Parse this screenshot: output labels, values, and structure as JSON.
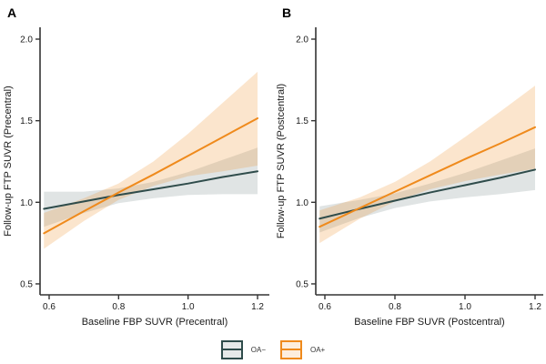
{
  "figure": {
    "panels": [
      {
        "tag": "A"
      },
      {
        "tag": "B"
      }
    ]
  },
  "colors": {
    "oa_neg_line": "#2F4C4B",
    "oa_pos_line": "#EF8A1C",
    "oa_neg_band": "rgba(47,76,75,0.15)",
    "oa_pos_band": "rgba(239,138,28,0.22)",
    "axis": "#333333",
    "text": "#1A1A1A"
  },
  "legend": {
    "items": [
      {
        "label": "OA−",
        "color": "#2F4C4B",
        "band": "rgba(47,76,75,0.12)"
      },
      {
        "label": "OA+",
        "color": "#EF8A1C",
        "band": "rgba(239,138,28,0.15)"
      }
    ]
  },
  "chart_data": [
    {
      "type": "line",
      "panel": "A",
      "xlabel": "Baseline FBP SUVR (Precentral)",
      "ylabel": "Follow-up FTP SUVR (Precentral)",
      "xlim": [
        0.55,
        1.22
      ],
      "ylim": [
        0.43,
        2.07
      ],
      "x_tick_values": [
        0.6,
        0.8,
        1.0,
        1.2
      ],
      "x_ticks": [
        "0.6",
        "0.8",
        "1.0",
        "1.2"
      ],
      "y_tick_values": [
        0.5,
        1.0,
        1.5,
        2.0
      ],
      "y_ticks": [
        "0.5",
        "1.0",
        "1.5",
        "2.0"
      ],
      "grid": false,
      "x": [
        0.585,
        0.7,
        0.8,
        0.9,
        1.0,
        1.1,
        1.2
      ],
      "series": [
        {
          "name": "OA−",
          "color": "#2F4C4B",
          "fill": "rgba(47,76,75,0.15)",
          "y": [
            0.96,
            1.005,
            1.045,
            1.08,
            1.115,
            1.155,
            1.19
          ],
          "ci_low": [
            0.85,
            0.935,
            0.995,
            1.025,
            1.045,
            1.05,
            1.05
          ],
          "ci_high": [
            1.065,
            1.065,
            1.085,
            1.125,
            1.185,
            1.26,
            1.335
          ]
        },
        {
          "name": "OA+",
          "color": "#EF8A1C",
          "fill": "rgba(239,138,28,0.22)",
          "y": [
            0.81,
            0.945,
            1.06,
            1.17,
            1.285,
            1.4,
            1.515
          ],
          "ci_low": [
            0.715,
            0.885,
            1.015,
            1.1,
            1.16,
            1.19,
            1.225
          ],
          "ci_high": [
            0.935,
            1.025,
            1.115,
            1.25,
            1.42,
            1.61,
            1.8
          ]
        }
      ]
    },
    {
      "type": "line",
      "panel": "B",
      "xlabel": "Baseline FBP SUVR (Postcentral)",
      "ylabel": "Follow-up FTP SUVR (Postcentral)",
      "xlim": [
        0.55,
        1.22
      ],
      "ylim": [
        0.43,
        2.07
      ],
      "x_tick_values": [
        0.6,
        0.8,
        1.0,
        1.2
      ],
      "x_ticks": [
        "0.6",
        "0.8",
        "1.0",
        "1.2"
      ],
      "y_tick_values": [
        0.5,
        1.0,
        1.5,
        2.0
      ],
      "y_ticks": [
        "0.5",
        "1.0",
        "1.5",
        "2.0"
      ],
      "grid": false,
      "x": [
        0.585,
        0.7,
        0.8,
        0.9,
        1.0,
        1.1,
        1.2
      ],
      "series": [
        {
          "name": "OA−",
          "color": "#2F4C4B",
          "fill": "rgba(47,76,75,0.15)",
          "y": [
            0.9,
            0.96,
            1.01,
            1.06,
            1.105,
            1.15,
            1.2
          ],
          "ci_low": [
            0.815,
            0.905,
            0.965,
            1.005,
            1.03,
            1.05,
            1.075
          ],
          "ci_high": [
            0.975,
            1.015,
            1.055,
            1.115,
            1.18,
            1.255,
            1.33
          ]
        },
        {
          "name": "OA+",
          "color": "#EF8A1C",
          "fill": "rgba(239,138,28,0.22)",
          "y": [
            0.85,
            0.965,
            1.065,
            1.165,
            1.265,
            1.36,
            1.46
          ],
          "ci_low": [
            0.75,
            0.9,
            1.005,
            1.08,
            1.13,
            1.17,
            1.205
          ],
          "ci_high": [
            0.95,
            1.03,
            1.125,
            1.25,
            1.4,
            1.555,
            1.715
          ]
        }
      ]
    }
  ]
}
